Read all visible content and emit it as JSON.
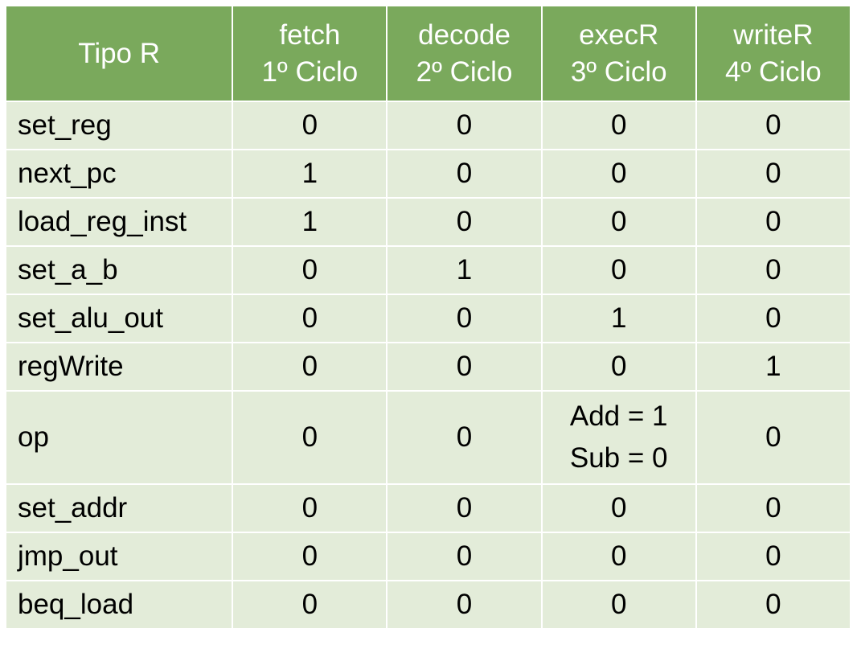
{
  "table": {
    "corner_label": "Tipo R",
    "columns": [
      {
        "name": "fetch",
        "cycle": "1º Ciclo"
      },
      {
        "name": "decode",
        "cycle": "2º Ciclo"
      },
      {
        "name": "execR",
        "cycle": "3º Ciclo"
      },
      {
        "name": "writeR",
        "cycle": "4º Ciclo"
      }
    ],
    "rows": [
      {
        "signal": "set_reg",
        "values": [
          "0",
          "0",
          "0",
          "0"
        ]
      },
      {
        "signal": "next_pc",
        "values": [
          "1",
          "0",
          "0",
          "0"
        ]
      },
      {
        "signal": "load_reg_inst",
        "values": [
          "1",
          "0",
          "0",
          "0"
        ]
      },
      {
        "signal": "set_a_b",
        "values": [
          "0",
          "1",
          "0",
          "0"
        ]
      },
      {
        "signal": "set_alu_out",
        "values": [
          "0",
          "0",
          "1",
          "0"
        ]
      },
      {
        "signal": "regWrite",
        "values": [
          "0",
          "0",
          "0",
          "1"
        ]
      },
      {
        "signal": "op",
        "values": [
          "0",
          "0",
          "",
          "0"
        ],
        "exec_lines": [
          "Add = 1",
          "Sub = 0"
        ]
      },
      {
        "signal": "set_addr",
        "values": [
          "0",
          "0",
          "0",
          "0"
        ]
      },
      {
        "signal": "jmp_out",
        "values": [
          "0",
          "0",
          "0",
          "0"
        ]
      },
      {
        "signal": "beq_load",
        "values": [
          "0",
          "0",
          "0",
          "0"
        ]
      }
    ]
  },
  "colors": {
    "header_bg": "#7aa95c",
    "cell_bg": "#e3ecd9",
    "border": "#ffffff"
  }
}
